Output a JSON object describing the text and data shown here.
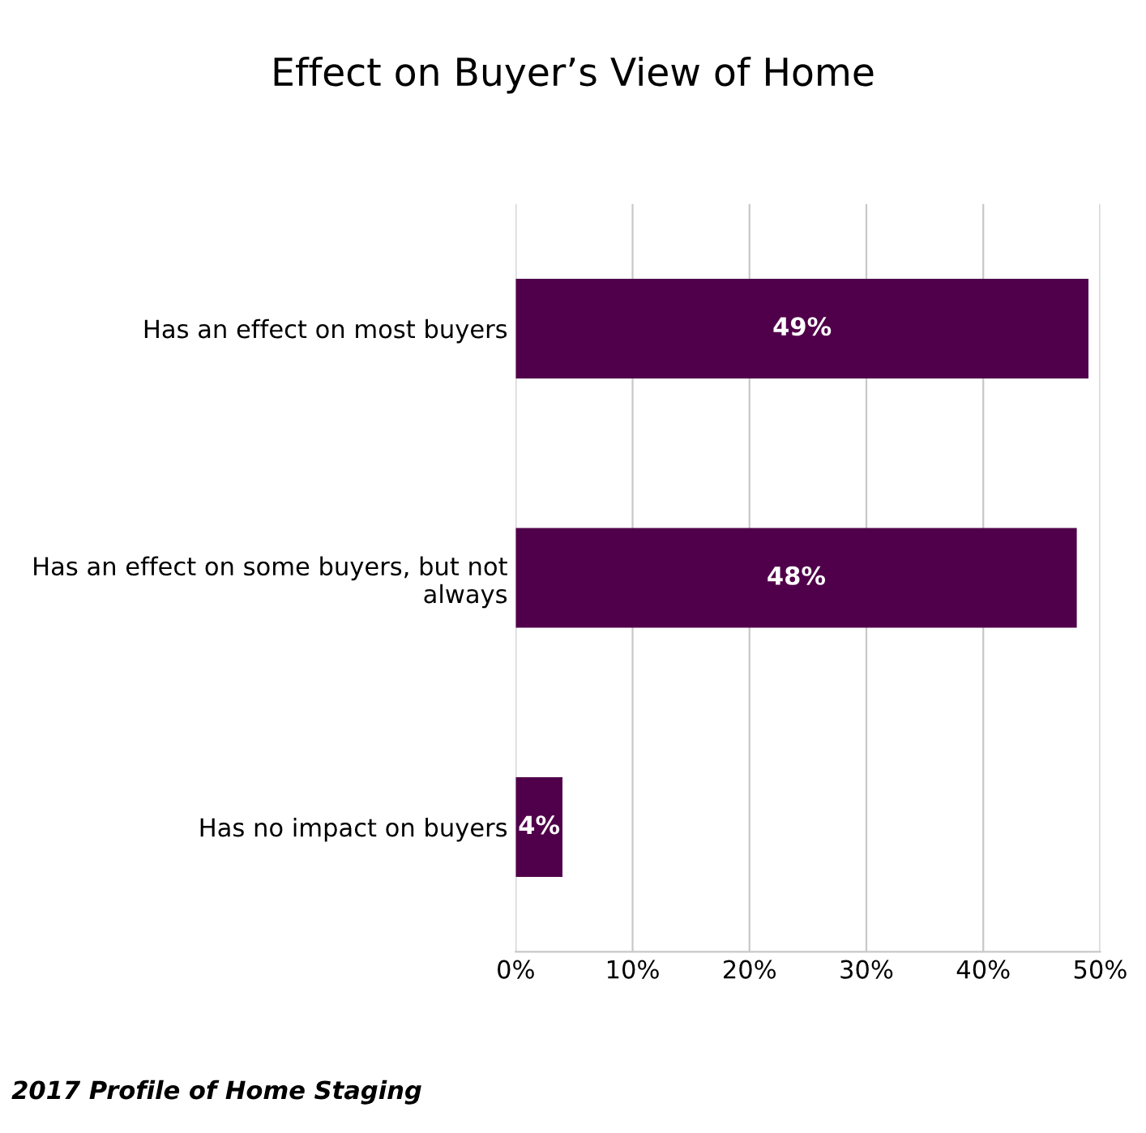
{
  "chart_data": {
    "type": "bar",
    "orientation": "horizontal",
    "title": "Effect on Buyer’s View of Home",
    "categories": [
      "Has an effect on most buyers",
      "Has an effect on some buyers, but not always",
      "Has no impact on buyers"
    ],
    "values": [
      49,
      48,
      4
    ],
    "value_labels": [
      "49%",
      "48%",
      "4%"
    ],
    "color": "#50004a",
    "xlim": [
      0,
      50
    ],
    "xticks": [
      {
        "value": 0,
        "label": "0%"
      },
      {
        "value": 10,
        "label": "10%"
      },
      {
        "value": 20,
        "label": "20%"
      },
      {
        "value": 30,
        "label": "30%"
      },
      {
        "value": 40,
        "label": "40%"
      },
      {
        "value": 50,
        "label": "50%"
      }
    ],
    "grid": "x",
    "legend": false,
    "annotations": [
      "2017 Profile of Home Staging"
    ]
  }
}
